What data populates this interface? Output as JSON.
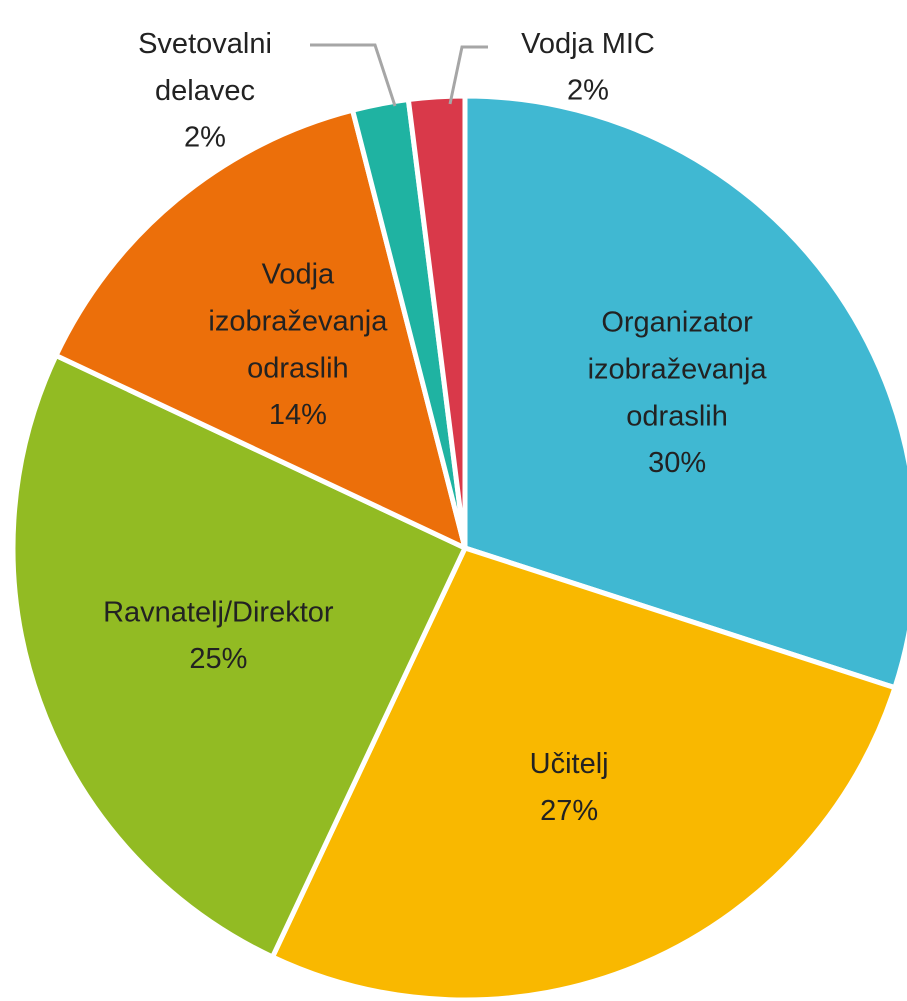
{
  "chart_data": {
    "type": "pie",
    "categories": [
      "Organizator izobraževanja odraslih",
      "Učitelj",
      "Ravnatelj/Direktor",
      "Vodja izobraževanja odraslih",
      "Svetovalni delavec",
      "Vodja MIC"
    ],
    "values": [
      30,
      27,
      25,
      14,
      2,
      2
    ],
    "value_labels": [
      "30%",
      "27%",
      "25%",
      "14%",
      "2%",
      "2%"
    ],
    "colors": [
      "#40b8d2",
      "#f9b800",
      "#92bb23",
      "#ec6f0a",
      "#1fb3a2",
      "#d9394a"
    ]
  }
}
